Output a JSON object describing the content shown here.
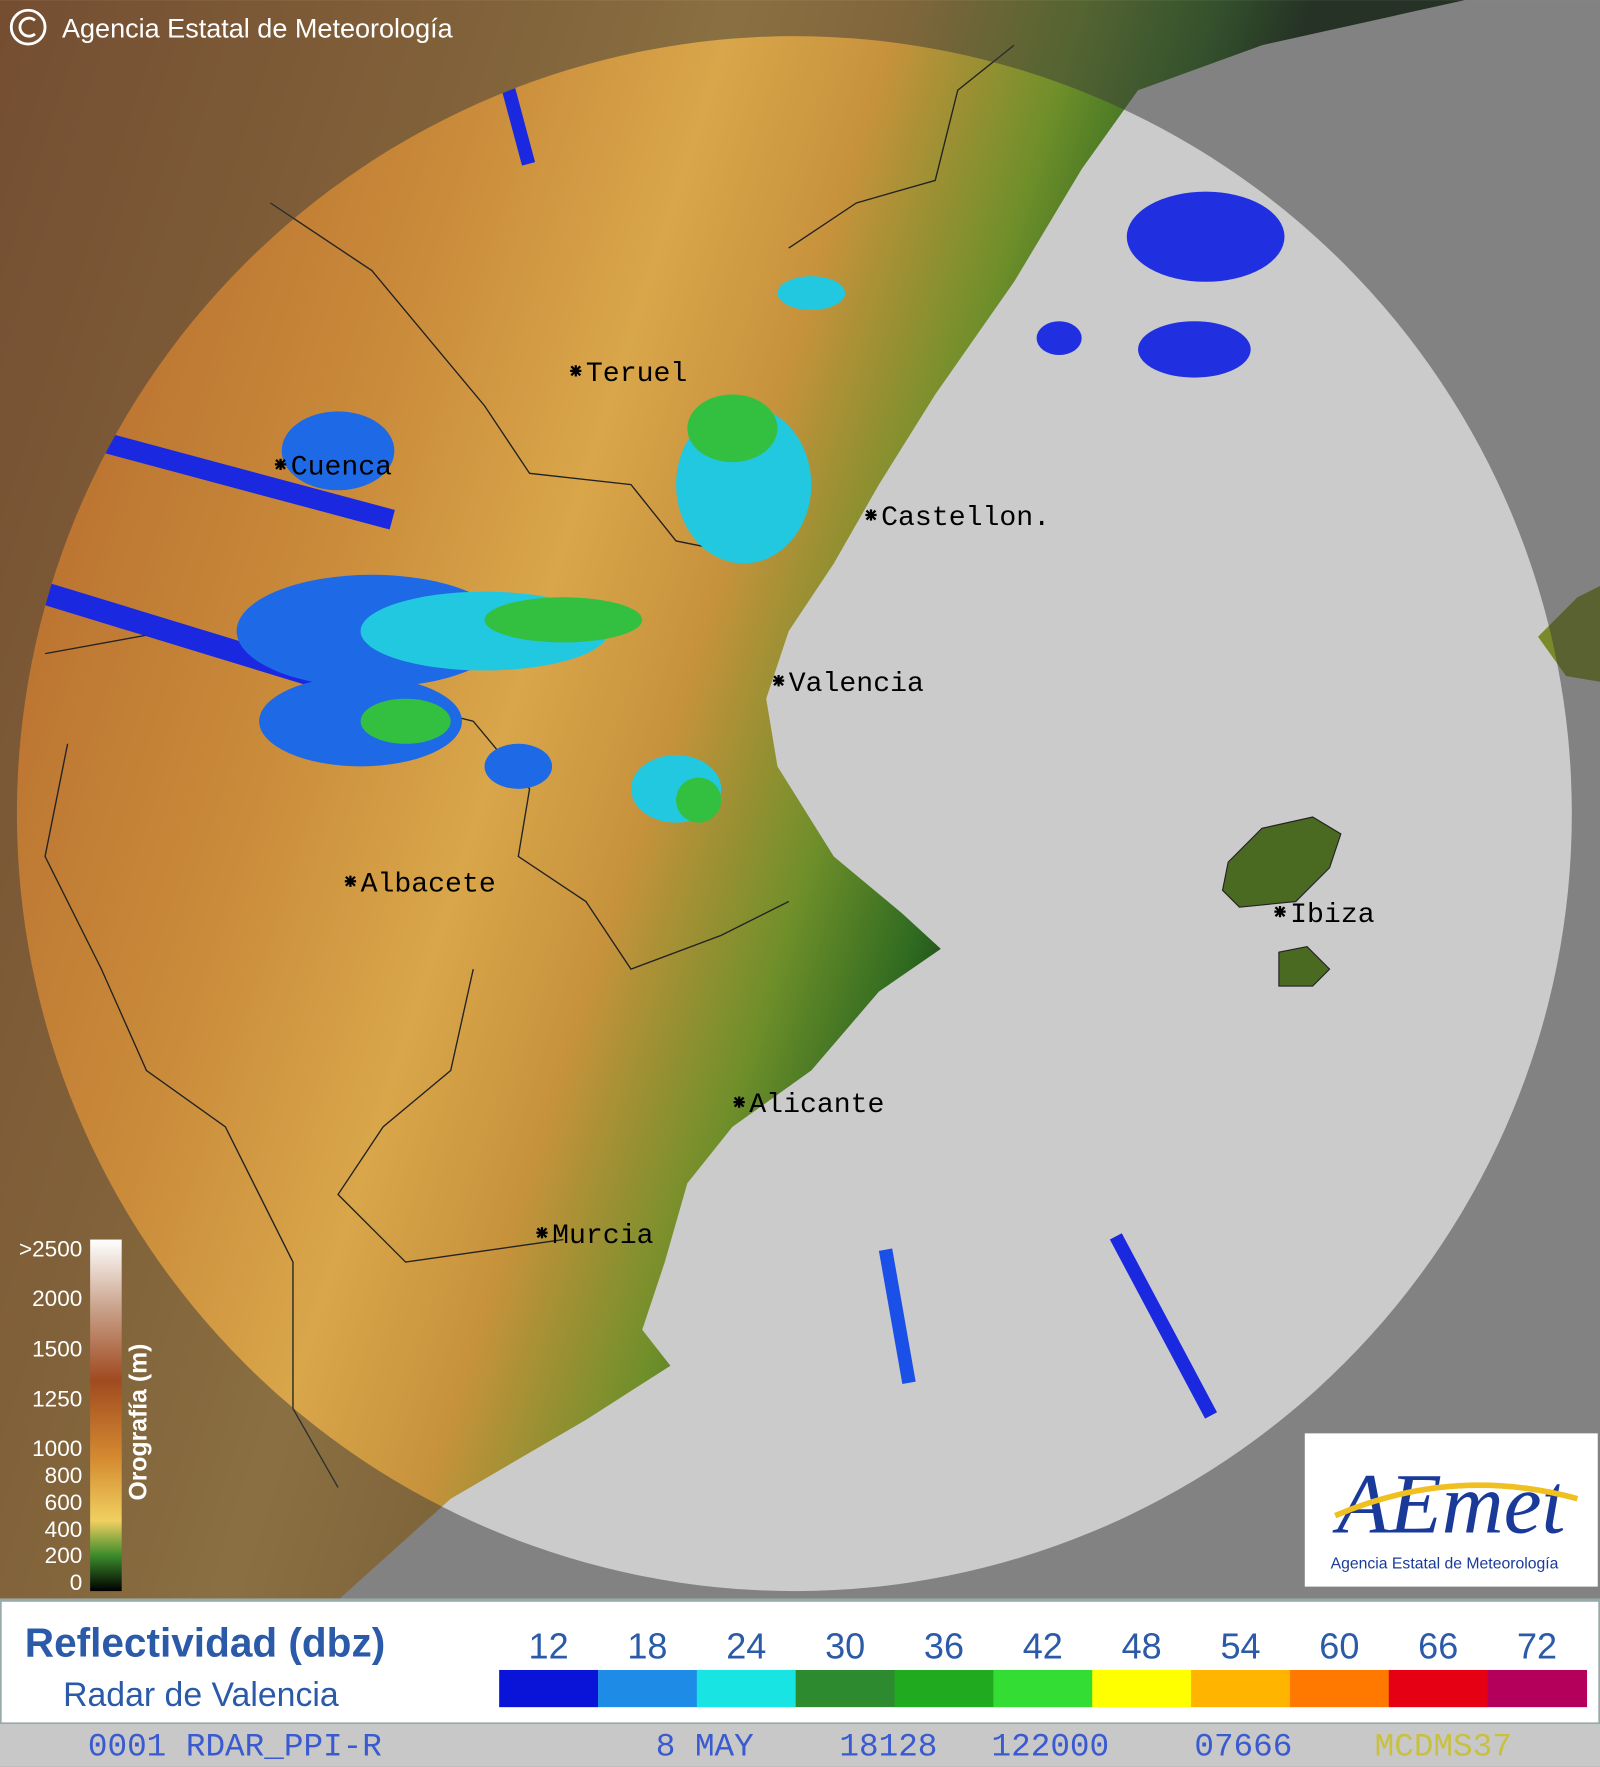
{
  "header": {
    "copyright": "Agencia Estatal de Meteorología"
  },
  "cities": [
    {
      "label": "Teruel"
    },
    {
      "label": "Cuenca"
    },
    {
      "label": "Castellon."
    },
    {
      "label": "Valencia"
    },
    {
      "label": "Albacete"
    },
    {
      "label": "Ibiza"
    },
    {
      "label": "Alicante"
    },
    {
      "label": "Murcia"
    }
  ],
  "orography_legend": {
    "title": "Orografía (m)",
    "labels": [
      ">2500",
      "2000",
      "1500",
      "1250",
      "1000",
      "800",
      "600",
      "400",
      "200",
      "0"
    ]
  },
  "logo": {
    "name": "AEmet",
    "subtitle": "Agencia Estatal de Meteorología"
  },
  "reflectivity_legend": {
    "title": "Reflectividad (dbz)",
    "subtitle": "Radar de Valencia",
    "levels": [
      {
        "label": "12",
        "color": "#0a14d8"
      },
      {
        "label": "18",
        "color": "#1e8ce6"
      },
      {
        "label": "24",
        "color": "#19e4e4"
      },
      {
        "label": "30",
        "color": "#2e8a2e"
      },
      {
        "label": "36",
        "color": "#1faa1f"
      },
      {
        "label": "42",
        "color": "#33dd33"
      },
      {
        "label": "48",
        "color": "#ffff00"
      },
      {
        "label": "54",
        "color": "#ffb400"
      },
      {
        "label": "60",
        "color": "#ff7800"
      },
      {
        "label": "66",
        "color": "#e60014"
      },
      {
        "label": "72",
        "color": "#b4005a"
      }
    ]
  },
  "status_line": {
    "product": "0001 RDAR_PPI-R",
    "date": "8 MAY",
    "code": "18128",
    "time": "122000",
    "station": "07666",
    "suffix": "MCDMS37"
  }
}
